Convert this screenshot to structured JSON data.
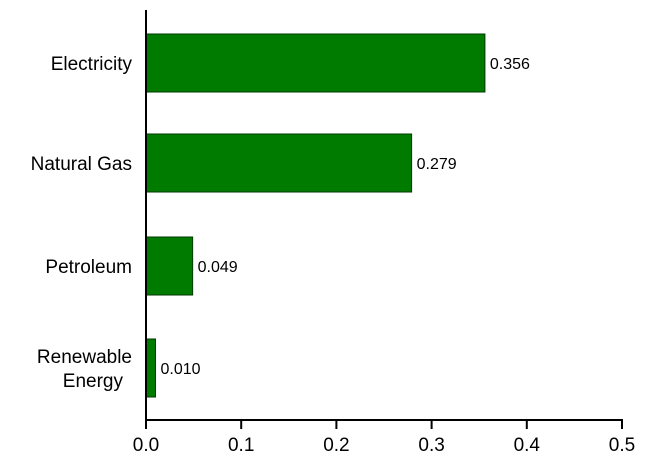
{
  "chart_data": {
    "type": "bar",
    "orientation": "horizontal",
    "title": "",
    "xlabel": "",
    "ylabel": "",
    "categories": [
      [
        "Electricity"
      ],
      [
        "Natural Gas"
      ],
      [
        "Petroleum"
      ],
      [
        "Renewable",
        "Energy"
      ]
    ],
    "values": [
      0.356,
      0.279,
      0.049,
      0.01
    ],
    "value_labels": [
      "0.356",
      "0.279",
      "0.049",
      "0.010"
    ],
    "xlim": [
      0,
      0.5
    ],
    "xticks": [
      0,
      0.1,
      0.2,
      0.3,
      0.4,
      0.5
    ],
    "xtick_labels": [
      "0.0",
      "0.1",
      "0.2",
      "0.3",
      "0.4",
      "0.5"
    ],
    "grid": false,
    "legend": "none",
    "colors": {
      "bar_fill": "#007b00",
      "bar_edge": "#003a00",
      "axis": "#000000"
    }
  }
}
